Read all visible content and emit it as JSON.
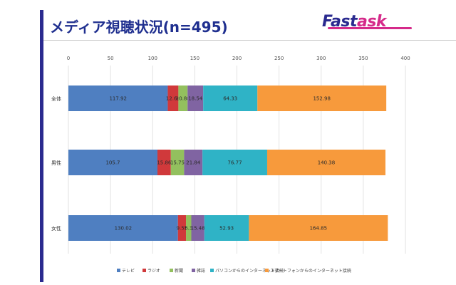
{
  "header": {
    "title": "メディア視聴状況(n=495)",
    "logo_text_main": "Fast",
    "logo_text_accent": "ask"
  },
  "colors": {
    "accent_bar": "#2a2a8f",
    "logo_main": "#2a2a8f",
    "logo_accent": "#d52a8a"
  },
  "chart_data": {
    "type": "bar",
    "orientation": "horizontal",
    "stacked": true,
    "categories": [
      "全体",
      "男性",
      "女性"
    ],
    "series": [
      {
        "name": "テレビ",
        "color": "#4f7fc1",
        "values": [
          117.92,
          105.7,
          130.02
        ]
      },
      {
        "name": "ラジオ",
        "color": "#d0393b",
        "values": [
          12.64,
          15.86,
          9.55
        ]
      },
      {
        "name": "新聞",
        "color": "#93c05e",
        "values": [
          10.88,
          15.75,
          6.3
        ]
      },
      {
        "name": "雑誌",
        "color": "#8064a2",
        "values": [
          18.54,
          21.84,
          15.48
        ]
      },
      {
        "name": "パソコンからのインターネット接続",
        "color": "#2fb3c6",
        "values": [
          64.33,
          76.77,
          52.93
        ]
      },
      {
        "name": "スマートフォンからのインターネット接続",
        "color": "#f79a3c",
        "values": [
          152.98,
          140.38,
          164.85
        ]
      }
    ],
    "xlim": [
      0,
      400
    ],
    "xticks": [
      "0",
      "50",
      "100",
      "150",
      "200",
      "250",
      "300",
      "350",
      "400"
    ],
    "grid": true,
    "legend_position": "bottom"
  }
}
